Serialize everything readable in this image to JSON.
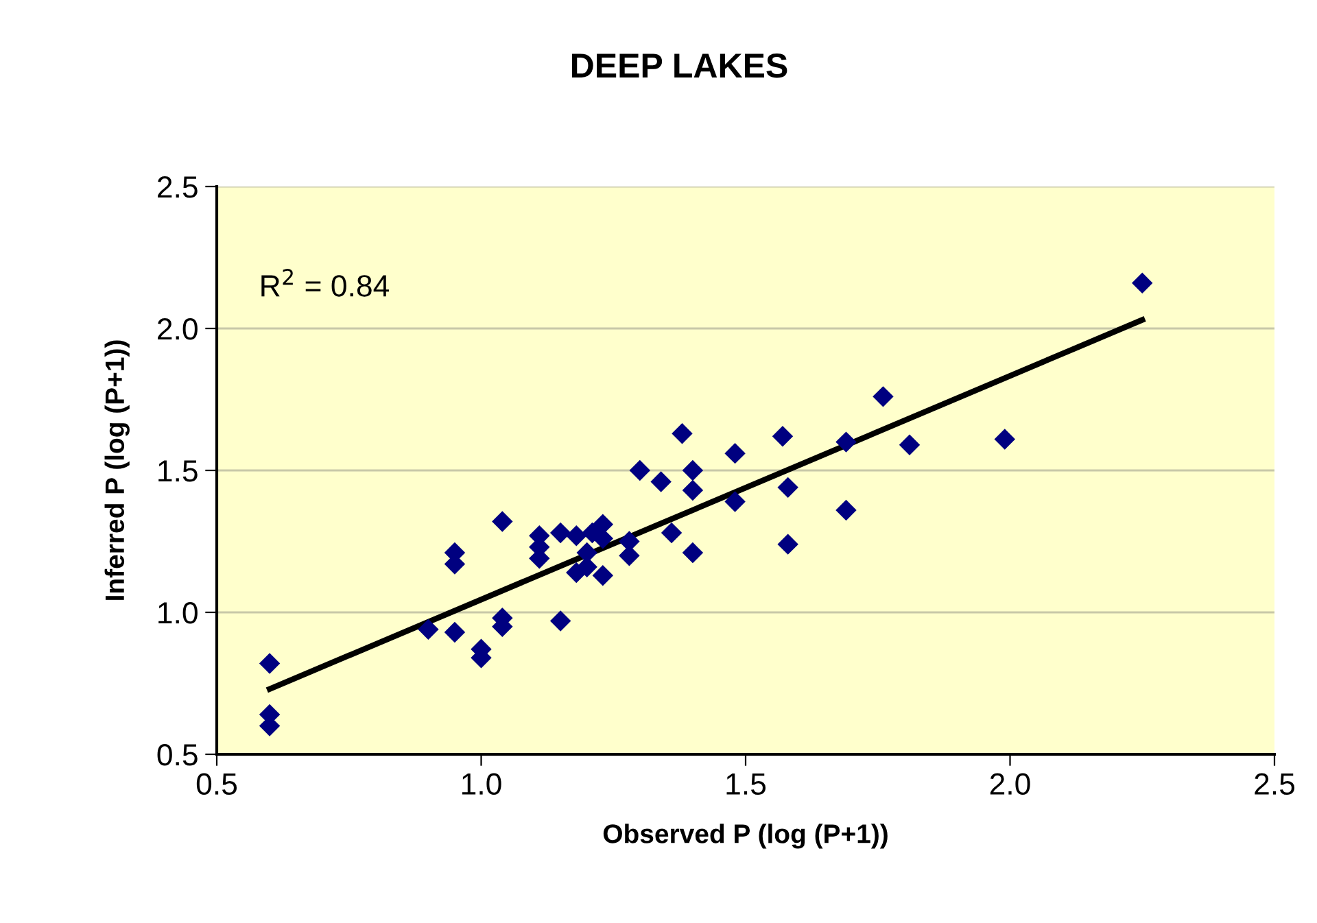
{
  "chart_data": {
    "type": "scatter",
    "title": "DEEP LAKES",
    "xlabel": "Observed P (log (P+1))",
    "ylabel": "Inferred P (log (P+1))",
    "annotations": [
      "R$^{2}$ = 0.84"
    ],
    "xlim": [
      0.5,
      2.5
    ],
    "xticks": [
      {
        "value": 0.5,
        "label": "0.5"
      },
      {
        "value": 1.0,
        "label": "1.0"
      },
      {
        "value": 1.5,
        "label": "1.5"
      },
      {
        "value": 2.0,
        "label": "2.0"
      },
      {
        "value": 2.5,
        "label": "2.5"
      }
    ],
    "ylim": [
      0.5,
      2.5
    ],
    "yticks": [
      {
        "value": 0.5,
        "label": "0.5"
      },
      {
        "value": 1.0,
        "label": "1.0"
      },
      {
        "value": 1.5,
        "label": "1.5"
      },
      {
        "value": 2.0,
        "label": "2.0"
      },
      {
        "value": 2.5,
        "label": "2.5"
      }
    ],
    "grid": "y",
    "legend": false,
    "series": [
      {
        "marker": "diamond",
        "color": "#000080",
        "x": [
          0.6,
          0.6,
          0.6,
          0.9,
          0.95,
          0.95,
          0.95,
          1.0,
          1.0,
          1.04,
          1.04,
          1.04,
          1.11,
          1.11,
          1.11,
          1.15,
          1.15,
          1.18,
          1.18,
          1.2,
          1.21,
          1.2,
          1.23,
          1.23,
          1.23,
          1.28,
          1.28,
          1.3,
          1.34,
          1.36,
          1.38,
          1.4,
          1.4,
          1.4,
          1.48,
          1.48,
          1.57,
          1.58,
          1.58,
          1.69,
          1.69,
          1.76,
          1.81,
          1.99,
          2.25
        ],
        "values": [
          0.82,
          0.64,
          0.6,
          0.94,
          1.21,
          1.17,
          0.93,
          0.87,
          0.84,
          1.32,
          0.98,
          0.95,
          1.27,
          1.23,
          1.19,
          0.97,
          1.28,
          1.27,
          1.14,
          1.21,
          1.28,
          1.16,
          1.31,
          1.13,
          1.26,
          1.25,
          1.2,
          1.5,
          1.46,
          1.28,
          1.63,
          1.5,
          1.43,
          1.21,
          1.39,
          1.56,
          1.62,
          1.44,
          1.24,
          1.6,
          1.36,
          1.76,
          1.59,
          1.61,
          2.16
        ]
      },
      {
        "type": "line",
        "marker": "none",
        "line_style": "solid",
        "color": "#000000",
        "x": [
          0.6,
          2.25
        ],
        "values": [
          0.73,
          2.03
        ]
      }
    ]
  }
}
